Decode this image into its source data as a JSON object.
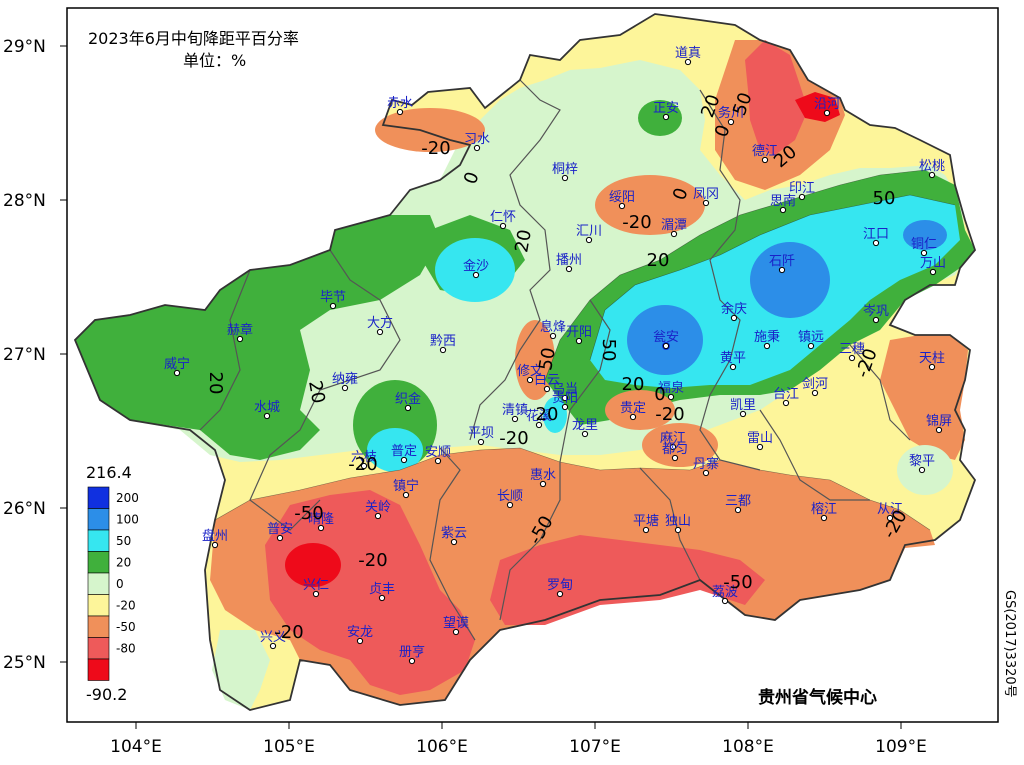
{
  "title": "2023年6月中旬降距平百分率",
  "unit": "单位：%",
  "source": "贵州省气候中心",
  "map_code": "GS(2017)3320号",
  "axes": {
    "lat_ticks": [
      "29°N",
      "28°N",
      "27°N",
      "26°N",
      "25°N"
    ],
    "lon_ticks": [
      "104°E",
      "105°E",
      "106°E",
      "107°E",
      "108°E",
      "109°E"
    ]
  },
  "legend": {
    "max_label": "216.4",
    "min_label": "-90.2",
    "levels": [
      {
        "label": "200",
        "color": "#1030e0"
      },
      {
        "label": "100",
        "color": "#2c8ee8"
      },
      {
        "label": "50",
        "color": "#36e6f0"
      },
      {
        "label": "20",
        "color": "#40b03c"
      },
      {
        "label": "0",
        "color": "#d6f5cc"
      },
      {
        "label": "-20",
        "color": "#fdf59a"
      },
      {
        "label": "-50",
        "color": "#f0905a"
      },
      {
        "label": "-80",
        "color": "#ee5a5a"
      },
      {
        "label": "",
        "color": "#ee0a1a"
      }
    ]
  },
  "contour_labels": [
    "20",
    "-20",
    "0",
    "20",
    "-20",
    "0",
    "50",
    "20",
    "0",
    "50",
    "20",
    "-20",
    "20",
    "50",
    "50",
    "-20",
    "20",
    "0",
    "-20",
    "-20",
    "-50",
    "-20",
    "-50",
    "-50",
    "20",
    "-20",
    "-20",
    "20"
  ],
  "stations": [
    "道真",
    "正安",
    "务川",
    "沿河",
    "赤水",
    "习水",
    "德江",
    "松桃",
    "桐梓",
    "绥阳",
    "凤冈",
    "印江",
    "思南",
    "湄潭",
    "仁怀",
    "汇川",
    "江口",
    "铜仁",
    "金沙",
    "播州",
    "石阡",
    "万山",
    "毕节",
    "赫章",
    "大方",
    "息烽",
    "开阳",
    "黔西",
    "瓮安",
    "余庆",
    "岑巩",
    "施秉",
    "镇远",
    "三穗",
    "天柱",
    "修文",
    "黄平",
    "威宁",
    "纳雍",
    "白云",
    "乌当",
    "清镇",
    "织金",
    "福泉",
    "凯里",
    "台江",
    "剑河",
    "锦屏",
    "水城",
    "贵阳",
    "花溪",
    "龙里",
    "贵定",
    "麻江",
    "雷山",
    "平坝",
    "普定",
    "安顺",
    "六枝",
    "惠水",
    "都匀",
    "丹寨",
    "黎平",
    "镇宁",
    "关岭",
    "长顺",
    "三都",
    "榕江",
    "从江",
    "盘州",
    "晴隆",
    "普安",
    "紫云",
    "平塘",
    "独山",
    "兴仁",
    "贞丰",
    "罗甸",
    "荔波",
    "兴义",
    "安龙",
    "望谟",
    "册亨"
  ]
}
